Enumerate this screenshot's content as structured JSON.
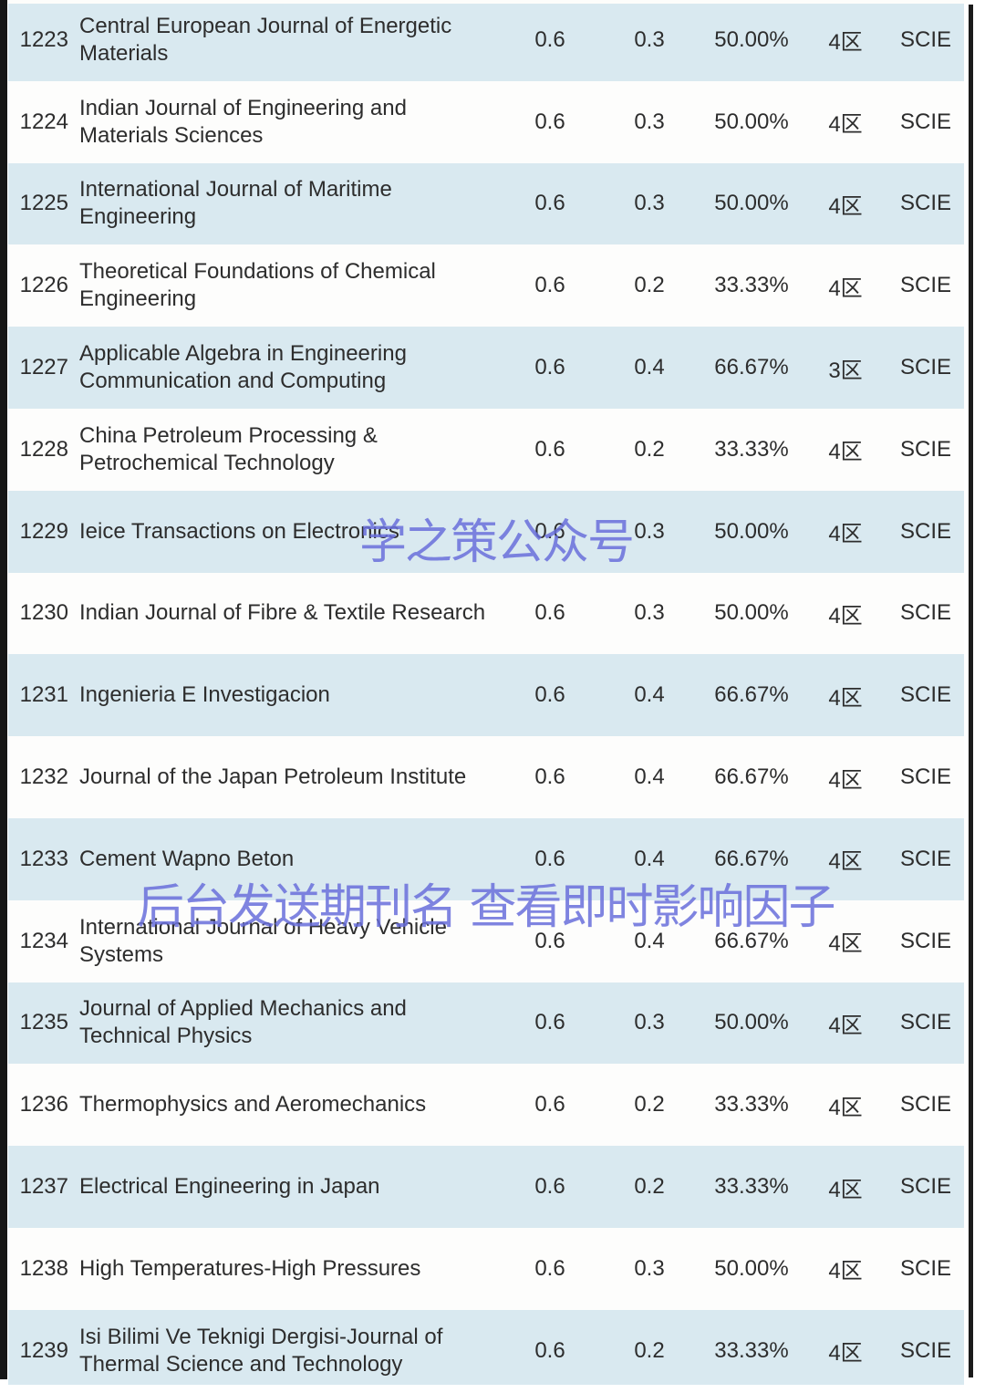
{
  "watermarks": {
    "center": "学之策公众号",
    "lower": "后台发送期刊名 查看即时影响因子",
    "color": "#686ed8"
  },
  "colors": {
    "row_alt_blue": "#d9e9f0",
    "row_base_white": "#fdfdfc",
    "text": "#2d2d2d",
    "page_edge": "#161616"
  },
  "table": {
    "columns": [
      "no",
      "name",
      "v1",
      "v2",
      "pct",
      "zone",
      "idx"
    ],
    "rows": [
      {
        "no": "1223",
        "name": "Central European Journal of Energetic Materials",
        "v1": "0.6",
        "v2": "0.3",
        "pct": "50.00%",
        "zone": "4区",
        "idx": "SCIE"
      },
      {
        "no": "1224",
        "name": "Indian Journal of Engineering and Materials Sciences",
        "v1": "0.6",
        "v2": "0.3",
        "pct": "50.00%",
        "zone": "4区",
        "idx": "SCIE"
      },
      {
        "no": "1225",
        "name": "International Journal of Maritime Engineering",
        "v1": "0.6",
        "v2": "0.3",
        "pct": "50.00%",
        "zone": "4区",
        "idx": "SCIE"
      },
      {
        "no": "1226",
        "name": "Theoretical Foundations of Chemical Engineering",
        "v1": "0.6",
        "v2": "0.2",
        "pct": "33.33%",
        "zone": "4区",
        "idx": "SCIE"
      },
      {
        "no": "1227",
        "name": "Applicable Algebra in Engineering Communication and Computing",
        "v1": "0.6",
        "v2": "0.4",
        "pct": "66.67%",
        "zone": "3区",
        "idx": "SCIE"
      },
      {
        "no": "1228",
        "name": "China Petroleum Processing & Petrochemical Technology",
        "v1": "0.6",
        "v2": "0.2",
        "pct": "33.33%",
        "zone": "4区",
        "idx": "SCIE"
      },
      {
        "no": "1229",
        "name": "Ieice Transactions on Electronics",
        "v1": "0.6",
        "v2": "0.3",
        "pct": "50.00%",
        "zone": "4区",
        "idx": "SCIE"
      },
      {
        "no": "1230",
        "name": "Indian Journal of Fibre & Textile Research",
        "v1": "0.6",
        "v2": "0.3",
        "pct": "50.00%",
        "zone": "4区",
        "idx": "SCIE"
      },
      {
        "no": "1231",
        "name": "Ingenieria E Investigacion",
        "v1": "0.6",
        "v2": "0.4",
        "pct": "66.67%",
        "zone": "4区",
        "idx": "SCIE"
      },
      {
        "no": "1232",
        "name": "Journal of the Japan Petroleum Institute",
        "v1": "0.6",
        "v2": "0.4",
        "pct": "66.67%",
        "zone": "4区",
        "idx": "SCIE"
      },
      {
        "no": "1233",
        "name": "Cement Wapno Beton",
        "v1": "0.6",
        "v2": "0.4",
        "pct": "66.67%",
        "zone": "4区",
        "idx": "SCIE"
      },
      {
        "no": "1234",
        "name": "International Journal of Heavy Vehicle Systems",
        "v1": "0.6",
        "v2": "0.4",
        "pct": "66.67%",
        "zone": "4区",
        "idx": "SCIE"
      },
      {
        "no": "1235",
        "name": "Journal of Applied Mechanics and Technical Physics",
        "v1": "0.6",
        "v2": "0.3",
        "pct": "50.00%",
        "zone": "4区",
        "idx": "SCIE"
      },
      {
        "no": "1236",
        "name": "Thermophysics and Aeromechanics",
        "v1": "0.6",
        "v2": "0.2",
        "pct": "33.33%",
        "zone": "4区",
        "idx": "SCIE"
      },
      {
        "no": "1237",
        "name": "Electrical Engineering in Japan",
        "v1": "0.6",
        "v2": "0.2",
        "pct": "33.33%",
        "zone": "4区",
        "idx": "SCIE"
      },
      {
        "no": "1238",
        "name": "High Temperatures-High Pressures",
        "v1": "0.6",
        "v2": "0.3",
        "pct": "50.00%",
        "zone": "4区",
        "idx": "SCIE"
      },
      {
        "no": "1239",
        "name": "Isi Bilimi Ve Teknigi Dergisi-Journal of Thermal Science and Technology",
        "v1": "0.6",
        "v2": "0.2",
        "pct": "33.33%",
        "zone": "4区",
        "idx": "SCIE"
      }
    ]
  }
}
